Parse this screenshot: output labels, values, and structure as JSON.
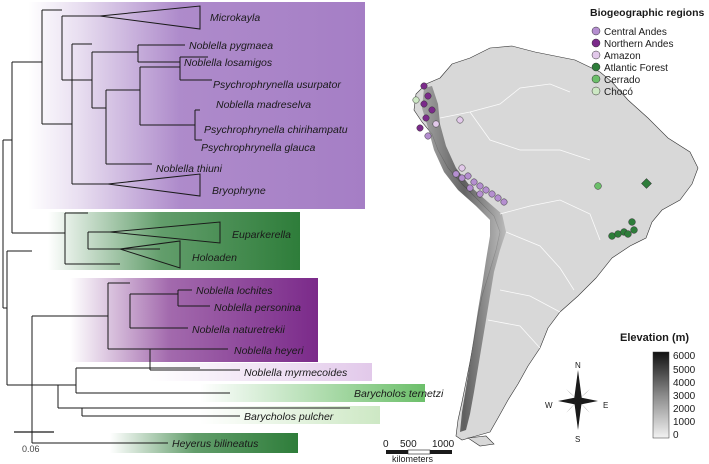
{
  "tree": {
    "taxa": {
      "microkayla": "Microkayla",
      "n_pygmaea": "Noblella pygmaea",
      "n_losamigos": "Noblella losamigos",
      "p_usurpator": "Psychrophrynella usurpator",
      "n_madreselva": "Noblella madreselva",
      "p_chirihampatu": "Psychrophrynella chirihampatu",
      "p_glauca": "Psychrophrynella glauca",
      "n_thiuni": "Noblella thiuni",
      "bryophryne": "Bryophryne",
      "euparkerella": "Euparkerella",
      "holoaden": "Holoaden",
      "n_lochites": "Noblella lochites",
      "n_personina": "Noblella personina",
      "n_naturetrekii": "Noblella naturetrekii",
      "n_heyeri": "Noblella heyeri",
      "n_myrmecoides": "Noblella myrmecoides",
      "b_ternetzi": "Barycholos ternetzi",
      "b_pulcher": "Barycholos pulcher",
      "h_bilineatus": "Heyerus bilineatus"
    },
    "scale_bar_label": "0.06"
  },
  "legend": {
    "title": "Biogeographic regions",
    "items": [
      {
        "label": "Central Andes",
        "color": "#b58fd0"
      },
      {
        "label": "Northern Andes",
        "color": "#7b2a8a"
      },
      {
        "label": "Amazon",
        "color": "#e2c9ea"
      },
      {
        "label": "Atlantic Forest",
        "color": "#2e7d3a"
      },
      {
        "label": "Cerrado",
        "color": "#6cbf6a"
      },
      {
        "label": "Chocó",
        "color": "#cde8c4"
      }
    ]
  },
  "elevation": {
    "title": "Elevation (m)",
    "ticks": [
      "6000",
      "5000",
      "4000",
      "3000",
      "2000",
      "1000",
      "0"
    ]
  },
  "scalebar": {
    "ticks": [
      "0",
      "500",
      "1000"
    ],
    "unit": "kilometers"
  },
  "compass": {
    "n": "N",
    "s": "S",
    "e": "E",
    "w": "W"
  },
  "colors": {
    "clade_purple": "#a57ec5",
    "clade_green": "#2e7d3a",
    "clade_dark_purple": "#7b2a8a",
    "map_land": "#d8d8d8",
    "map_andes": "#6a6a6a"
  }
}
